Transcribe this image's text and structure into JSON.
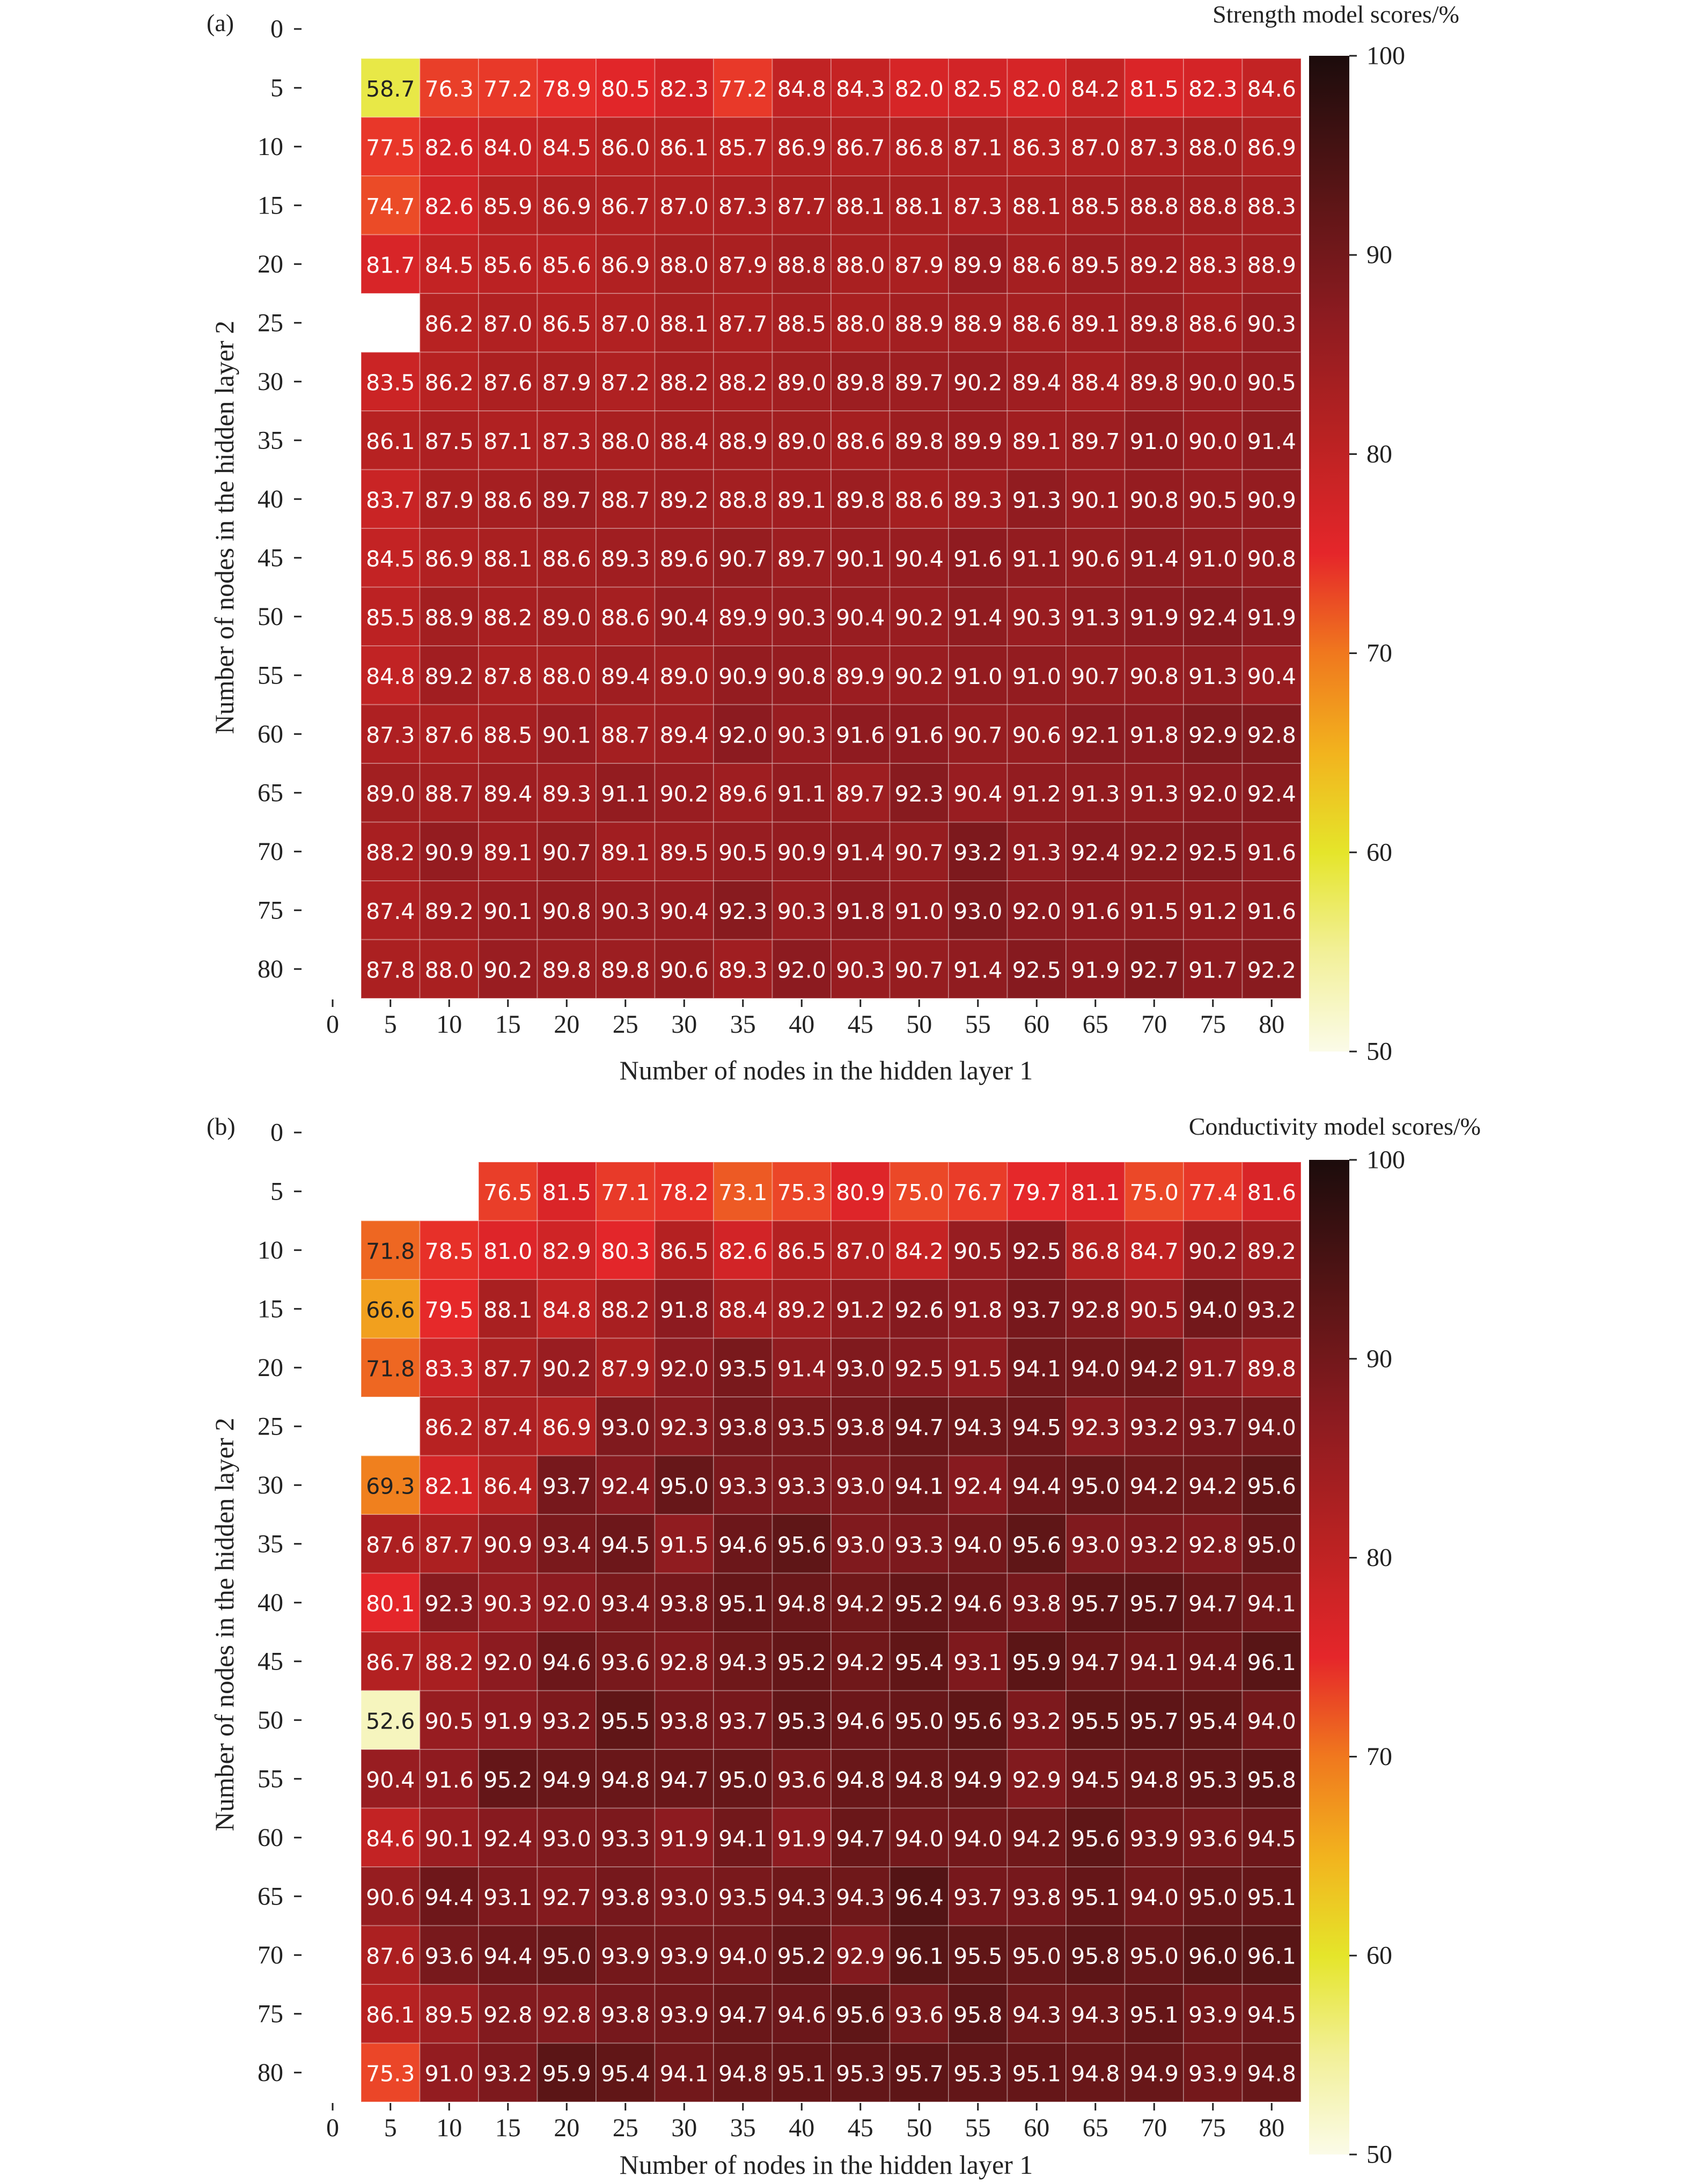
{
  "chart_data": [
    {
      "type": "heatmap",
      "panel_label": "(a)",
      "title": "Strength model scores/%",
      "xlabel": "Number of nodes in the hidden layer 1",
      "ylabel": "Number of nodes in the hidden layer 2",
      "x_ticks": [
        "0",
        "5",
        "10",
        "15",
        "20",
        "25",
        "30",
        "35",
        "40",
        "45",
        "50",
        "55",
        "60",
        "65",
        "70",
        "75",
        "80"
      ],
      "y_ticks": [
        "0",
        "5",
        "10",
        "15",
        "20",
        "25",
        "30",
        "35",
        "40",
        "45",
        "50",
        "55",
        "60",
        "65",
        "70",
        "75",
        "80"
      ],
      "x": [
        5,
        10,
        15,
        20,
        25,
        30,
        35,
        40,
        45,
        50,
        55,
        60,
        65,
        70,
        75,
        80
      ],
      "y": [
        5,
        10,
        15,
        20,
        25,
        30,
        35,
        40,
        45,
        50,
        55,
        60,
        65,
        70,
        75,
        80
      ],
      "colorbar": {
        "ticks": [
          "50",
          "60",
          "70",
          "80",
          "90",
          "100"
        ],
        "range": [
          50,
          100
        ]
      },
      "values": [
        [
          58.7,
          76.3,
          77.2,
          78.9,
          80.5,
          82.3,
          77.2,
          84.8,
          84.3,
          82.0,
          82.5,
          82.0,
          84.2,
          81.5,
          82.3,
          84.6
        ],
        [
          77.5,
          82.6,
          84.0,
          84.5,
          86.0,
          86.1,
          85.7,
          86.9,
          86.7,
          86.8,
          87.1,
          86.3,
          87.0,
          87.3,
          88.0,
          86.9
        ],
        [
          74.7,
          82.6,
          85.9,
          86.9,
          86.7,
          87.0,
          87.3,
          87.7,
          88.1,
          88.1,
          87.3,
          88.1,
          88.5,
          88.8,
          88.8,
          88.3
        ],
        [
          81.7,
          84.5,
          85.6,
          85.6,
          86.9,
          88.0,
          87.9,
          88.8,
          88.0,
          87.9,
          89.9,
          88.6,
          89.5,
          89.2,
          88.3,
          88.9
        ],
        [
          null,
          86.2,
          87.0,
          86.5,
          87.0,
          88.1,
          87.7,
          88.5,
          88.0,
          88.9,
          88.9,
          88.6,
          89.1,
          89.8,
          88.6,
          90.3
        ],
        [
          83.5,
          86.2,
          87.6,
          87.9,
          87.2,
          88.2,
          88.2,
          89.0,
          89.8,
          89.7,
          90.2,
          89.4,
          88.4,
          89.8,
          90.0,
          90.5
        ],
        [
          86.1,
          87.5,
          87.1,
          87.3,
          88.0,
          88.4,
          88.9,
          89.0,
          88.6,
          89.8,
          89.9,
          89.1,
          89.7,
          91.0,
          90.0,
          91.4
        ],
        [
          83.7,
          87.9,
          88.6,
          89.7,
          88.7,
          89.2,
          88.8,
          89.1,
          89.8,
          88.6,
          89.3,
          91.3,
          90.1,
          90.8,
          90.5,
          90.9
        ],
        [
          84.5,
          86.9,
          88.1,
          88.6,
          89.3,
          89.6,
          90.7,
          89.7,
          90.1,
          90.4,
          91.6,
          91.1,
          90.6,
          91.4,
          91.0,
          90.8
        ],
        [
          85.5,
          88.9,
          88.2,
          89.0,
          88.6,
          90.4,
          89.9,
          90.3,
          90.4,
          90.2,
          91.4,
          90.3,
          91.3,
          91.9,
          92.4,
          91.9
        ],
        [
          84.8,
          89.2,
          87.8,
          88.0,
          89.4,
          89.0,
          90.9,
          90.8,
          89.9,
          90.2,
          91.0,
          91.0,
          90.7,
          90.8,
          91.3,
          90.4
        ],
        [
          87.3,
          87.6,
          88.5,
          90.1,
          88.7,
          89.4,
          92.0,
          90.3,
          91.6,
          91.6,
          90.7,
          90.6,
          92.1,
          91.8,
          92.9,
          92.8
        ],
        [
          89.0,
          88.7,
          89.4,
          89.3,
          91.1,
          90.2,
          89.6,
          91.1,
          89.7,
          92.3,
          90.4,
          91.2,
          91.3,
          91.3,
          92.0,
          92.4
        ],
        [
          88.2,
          90.9,
          89.1,
          90.7,
          89.1,
          89.5,
          90.5,
          90.9,
          91.4,
          90.7,
          93.2,
          91.3,
          92.4,
          92.2,
          92.5,
          91.6
        ],
        [
          87.4,
          89.2,
          90.1,
          90.8,
          90.3,
          90.4,
          92.3,
          90.3,
          91.8,
          91.0,
          93.0,
          92.0,
          91.6,
          91.5,
          91.2,
          91.6
        ],
        [
          87.8,
          88.0,
          90.2,
          89.8,
          89.8,
          90.6,
          89.3,
          92.0,
          90.3,
          90.7,
          91.4,
          92.5,
          91.9,
          92.7,
          91.7,
          92.2
        ]
      ]
    },
    {
      "type": "heatmap",
      "panel_label": "(b)",
      "title": "Conductivity model scores/%",
      "xlabel": "Number of nodes in the hidden layer 1",
      "ylabel": "Number of nodes in the hidden layer 2",
      "x_ticks": [
        "0",
        "5",
        "10",
        "15",
        "20",
        "25",
        "30",
        "35",
        "40",
        "45",
        "50",
        "55",
        "60",
        "65",
        "70",
        "75",
        "80"
      ],
      "y_ticks": [
        "0",
        "5",
        "10",
        "15",
        "20",
        "25",
        "30",
        "35",
        "40",
        "45",
        "50",
        "55",
        "60",
        "65",
        "70",
        "75",
        "80"
      ],
      "x": [
        5,
        10,
        15,
        20,
        25,
        30,
        35,
        40,
        45,
        50,
        55,
        60,
        65,
        70,
        75,
        80
      ],
      "y": [
        5,
        10,
        15,
        20,
        25,
        30,
        35,
        40,
        45,
        50,
        55,
        60,
        65,
        70,
        75,
        80
      ],
      "colorbar": {
        "ticks": [
          "50",
          "60",
          "70",
          "80",
          "90",
          "100"
        ],
        "range": [
          50,
          100
        ]
      },
      "values": [
        [
          null,
          null,
          76.5,
          81.5,
          77.1,
          78.2,
          73.1,
          75.3,
          80.9,
          75.0,
          76.7,
          79.7,
          81.1,
          75.0,
          77.4,
          81.6
        ],
        [
          71.8,
          78.5,
          81.0,
          82.9,
          80.3,
          86.5,
          82.6,
          86.5,
          87.0,
          84.2,
          90.5,
          92.5,
          86.8,
          84.7,
          90.2,
          89.2
        ],
        [
          66.6,
          79.5,
          88.1,
          84.8,
          88.2,
          91.8,
          88.4,
          89.2,
          91.2,
          92.6,
          91.8,
          93.7,
          92.8,
          90.5,
          94.0,
          93.2
        ],
        [
          71.8,
          83.3,
          87.7,
          90.2,
          87.9,
          92.0,
          93.5,
          91.4,
          93.0,
          92.5,
          91.5,
          94.1,
          94.0,
          94.2,
          91.7,
          89.8
        ],
        [
          null,
          86.2,
          87.4,
          86.9,
          93.0,
          92.3,
          93.8,
          93.5,
          93.8,
          94.7,
          94.3,
          94.5,
          92.3,
          93.2,
          93.7,
          94.0
        ],
        [
          69.3,
          82.1,
          86.4,
          93.7,
          92.4,
          95.0,
          93.3,
          93.3,
          93.0,
          94.1,
          92.4,
          94.4,
          95.0,
          94.2,
          94.2,
          95.6
        ],
        [
          87.6,
          87.7,
          90.9,
          93.4,
          94.5,
          91.5,
          94.6,
          95.6,
          93.0,
          93.3,
          94.0,
          95.6,
          93.0,
          93.2,
          92.8,
          95.0
        ],
        [
          80.1,
          92.3,
          90.3,
          92.0,
          93.4,
          93.8,
          95.1,
          94.8,
          94.2,
          95.2,
          94.6,
          93.8,
          95.7,
          95.7,
          94.7,
          94.1
        ],
        [
          86.7,
          88.2,
          92.0,
          94.6,
          93.6,
          92.8,
          94.3,
          95.2,
          94.2,
          95.4,
          93.1,
          95.9,
          94.7,
          94.1,
          94.4,
          96.1
        ],
        [
          52.6,
          90.5,
          91.9,
          93.2,
          95.5,
          93.8,
          93.7,
          95.3,
          94.6,
          95.0,
          95.6,
          93.2,
          95.5,
          95.7,
          95.4,
          94.0
        ],
        [
          90.4,
          91.6,
          95.2,
          94.9,
          94.8,
          94.7,
          95.0,
          93.6,
          94.8,
          94.8,
          94.9,
          92.9,
          94.5,
          94.8,
          95.3,
          95.8
        ],
        [
          84.6,
          90.1,
          92.4,
          93.0,
          93.3,
          91.9,
          94.1,
          91.9,
          94.7,
          94.0,
          94.0,
          94.2,
          95.6,
          93.9,
          93.6,
          94.5
        ],
        [
          90.6,
          94.4,
          93.1,
          92.7,
          93.8,
          93.0,
          93.5,
          94.3,
          94.3,
          96.4,
          93.7,
          93.8,
          95.1,
          94.0,
          95.0,
          95.1
        ],
        [
          87.6,
          93.6,
          94.4,
          95.0,
          93.9,
          93.9,
          94.0,
          95.2,
          92.9,
          96.1,
          95.5,
          95.0,
          95.8,
          95.0,
          96.0,
          96.1
        ],
        [
          86.1,
          89.5,
          92.8,
          92.8,
          93.8,
          93.9,
          94.7,
          94.6,
          95.6,
          93.6,
          95.8,
          94.3,
          94.3,
          95.1,
          93.9,
          94.5
        ],
        [
          75.3,
          91.0,
          93.2,
          95.9,
          95.4,
          94.1,
          94.8,
          95.1,
          95.3,
          95.7,
          95.3,
          95.1,
          94.8,
          94.9,
          93.9,
          94.8
        ]
      ]
    }
  ]
}
